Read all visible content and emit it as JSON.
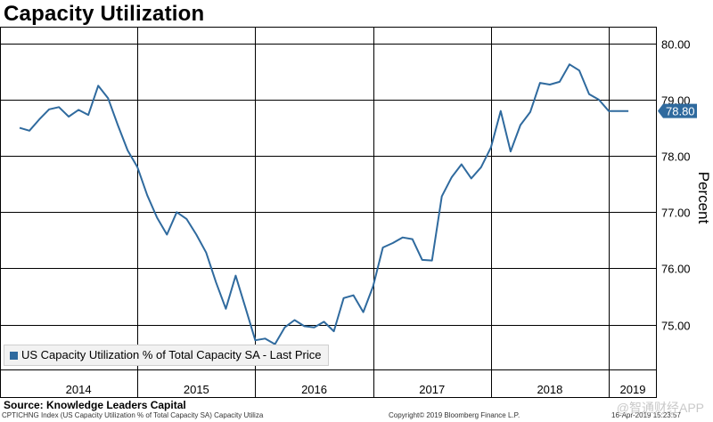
{
  "title": "Capacity Utilization",
  "source": "Source: Knowledge Leaders Capital",
  "footer": {
    "left": "CPTICHNG Index (US Capacity Utilization % of Total Capacity SA) Capacity Utiliza",
    "center": "Copyright© 2019 Bloomberg Finance L.P.",
    "right": "16-Apr-2019 15:23:57"
  },
  "watermark": "@智通财经APP",
  "colors": {
    "line": "#2f6a9e",
    "grid": "#000000",
    "label_bg": "#2f6a9e"
  },
  "chart_data": {
    "type": "line",
    "ylabel": "Percent",
    "ylim": [
      74.2,
      80.3
    ],
    "yticks": [
      "80.00",
      "79.00",
      "78.00",
      "77.00",
      "76.00",
      "75.00"
    ],
    "grid": true,
    "legend_position": "bottom-left",
    "xtick_labels": [
      "2014",
      "2015",
      "2016",
      "2017",
      "2018",
      "2019"
    ],
    "last_value_label": "78.80",
    "series": [
      {
        "name": "US Capacity Utilization % of Total Capacity SA - Last Price",
        "x": [
          "2014-01",
          "2014-02",
          "2014-03",
          "2014-04",
          "2014-05",
          "2014-06",
          "2014-07",
          "2014-08",
          "2014-09",
          "2014-10",
          "2014-11",
          "2014-12",
          "2015-01",
          "2015-02",
          "2015-03",
          "2015-04",
          "2015-05",
          "2015-06",
          "2015-07",
          "2015-08",
          "2015-09",
          "2015-10",
          "2015-11",
          "2015-12",
          "2016-01",
          "2016-02",
          "2016-03",
          "2016-04",
          "2016-05",
          "2016-06",
          "2016-07",
          "2016-08",
          "2016-09",
          "2016-10",
          "2016-11",
          "2016-12",
          "2017-01",
          "2017-02",
          "2017-03",
          "2017-04",
          "2017-05",
          "2017-06",
          "2017-07",
          "2017-08",
          "2017-09",
          "2017-10",
          "2017-11",
          "2017-12",
          "2018-01",
          "2018-02",
          "2018-03",
          "2018-04",
          "2018-05",
          "2018-06",
          "2018-07",
          "2018-08",
          "2018-09",
          "2018-10",
          "2018-11",
          "2018-12",
          "2019-01",
          "2019-02",
          "2019-03"
        ],
        "values": [
          78.5,
          78.45,
          78.65,
          78.83,
          78.87,
          78.7,
          78.82,
          78.73,
          79.25,
          79.03,
          78.55,
          78.1,
          77.8,
          77.3,
          76.9,
          76.6,
          77.0,
          76.88,
          76.6,
          76.28,
          75.75,
          75.28,
          75.87,
          75.3,
          74.72,
          74.75,
          74.65,
          74.95,
          75.08,
          74.97,
          74.95,
          75.05,
          74.88,
          75.47,
          75.52,
          75.22,
          75.68,
          76.37,
          76.45,
          76.55,
          76.52,
          76.15,
          76.14,
          77.28,
          77.62,
          77.85,
          77.6,
          77.8,
          78.15,
          78.8,
          78.08,
          78.55,
          78.78,
          79.3,
          79.27,
          79.32,
          79.63,
          79.52,
          79.1,
          79.0,
          78.8,
          78.8,
          78.8
        ]
      }
    ]
  }
}
